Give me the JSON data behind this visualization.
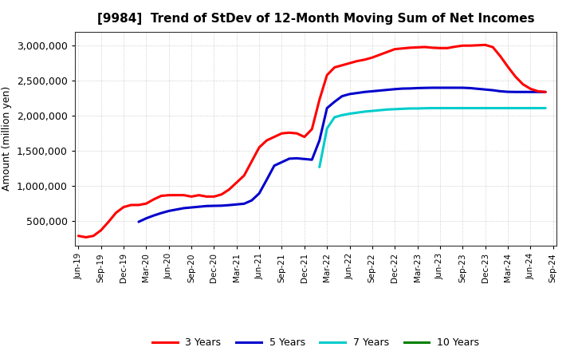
{
  "title": "[9984]  Trend of StDev of 12-Month Moving Sum of Net Incomes",
  "ylabel": "Amount (million yen)",
  "background_color": "#ffffff",
  "grid_color": "#999999",
  "ylim": [
    150000,
    3200000
  ],
  "yticks": [
    500000,
    1000000,
    1500000,
    2000000,
    2500000,
    3000000
  ],
  "series": {
    "3yr": {
      "color": "#ff0000",
      "label": "3 Years",
      "x": [
        0,
        1,
        2,
        3,
        4,
        5,
        6,
        7,
        8,
        9,
        10,
        11,
        12,
        13,
        14,
        15,
        16,
        17,
        18,
        19,
        20,
        21,
        22,
        23,
        24,
        25,
        26,
        27,
        28,
        29,
        30,
        31,
        32,
        33,
        34,
        35,
        36,
        37,
        38,
        39,
        40,
        41,
        42,
        43,
        44,
        45,
        46,
        47,
        48,
        49,
        50,
        51,
        52,
        53,
        54,
        55,
        56,
        57,
        58,
        59,
        60,
        61,
        62
      ],
      "y": [
        290000,
        270000,
        290000,
        370000,
        490000,
        620000,
        700000,
        730000,
        730000,
        750000,
        810000,
        860000,
        870000,
        870000,
        870000,
        850000,
        870000,
        850000,
        850000,
        880000,
        950000,
        1050000,
        1150000,
        1350000,
        1550000,
        1650000,
        1700000,
        1750000,
        1760000,
        1750000,
        1700000,
        1810000,
        2230000,
        2580000,
        2690000,
        2720000,
        2750000,
        2780000,
        2800000,
        2830000,
        2870000,
        2910000,
        2950000,
        2960000,
        2970000,
        2975000,
        2980000,
        2970000,
        2965000,
        2965000,
        2985000,
        3000000,
        3000000,
        3005000,
        3010000,
        2980000,
        2850000,
        2700000,
        2560000,
        2450000,
        2385000,
        2350000,
        2340000
      ]
    },
    "5yr": {
      "color": "#0000cc",
      "label": "5 Years",
      "x": [
        8,
        9,
        10,
        11,
        12,
        13,
        14,
        15,
        16,
        17,
        18,
        19,
        20,
        21,
        22,
        23,
        24,
        25,
        26,
        27,
        28,
        29,
        30,
        31,
        32,
        33,
        34,
        35,
        36,
        37,
        38,
        39,
        40,
        41,
        42,
        43,
        44,
        45,
        46,
        47,
        48,
        49,
        50,
        51,
        52,
        53,
        54,
        55,
        56,
        57,
        58,
        59,
        60,
        61,
        62
      ],
      "y": [
        490000,
        540000,
        580000,
        615000,
        645000,
        665000,
        685000,
        695000,
        705000,
        715000,
        718000,
        720000,
        728000,
        738000,
        748000,
        795000,
        895000,
        1090000,
        1290000,
        1340000,
        1390000,
        1395000,
        1385000,
        1375000,
        1650000,
        2110000,
        2200000,
        2280000,
        2310000,
        2325000,
        2340000,
        2350000,
        2360000,
        2370000,
        2380000,
        2388000,
        2390000,
        2395000,
        2398000,
        2400000,
        2400000,
        2400000,
        2400000,
        2400000,
        2395000,
        2385000,
        2375000,
        2365000,
        2350000,
        2342000,
        2340000,
        2340000,
        2340000,
        2340000,
        2340000
      ]
    },
    "7yr": {
      "color": "#00cccc",
      "label": "7 Years",
      "x": [
        32,
        33,
        34,
        35,
        36,
        37,
        38,
        39,
        40,
        41,
        42,
        43,
        44,
        45,
        46,
        47,
        48,
        49,
        50,
        51,
        52,
        53,
        54,
        55,
        56,
        57,
        58,
        59,
        60,
        61,
        62
      ],
      "y": [
        1270000,
        1820000,
        1980000,
        2010000,
        2030000,
        2045000,
        2060000,
        2070000,
        2080000,
        2090000,
        2095000,
        2100000,
        2105000,
        2105000,
        2108000,
        2110000,
        2110000,
        2110000,
        2110000,
        2110000,
        2110000,
        2110000,
        2110000,
        2110000,
        2110000,
        2110000,
        2110000,
        2110000,
        2110000,
        2110000,
        2110000
      ]
    },
    "10yr": {
      "color": "#008000",
      "label": "10 Years",
      "x": [],
      "y": []
    }
  },
  "xtick_labels": [
    "Jun-19",
    "Sep-19",
    "Dec-19",
    "Mar-20",
    "Jun-20",
    "Sep-20",
    "Dec-20",
    "Mar-21",
    "Jun-21",
    "Sep-21",
    "Dec-21",
    "Mar-22",
    "Jun-22",
    "Sep-22",
    "Dec-22",
    "Mar-23",
    "Jun-23",
    "Sep-23",
    "Dec-23",
    "Mar-24",
    "Jun-24",
    "Sep-24"
  ],
  "xtick_positions": [
    0,
    3,
    6,
    9,
    12,
    15,
    18,
    21,
    24,
    27,
    30,
    33,
    36,
    39,
    42,
    45,
    48,
    51,
    54,
    57,
    60,
    63
  ]
}
